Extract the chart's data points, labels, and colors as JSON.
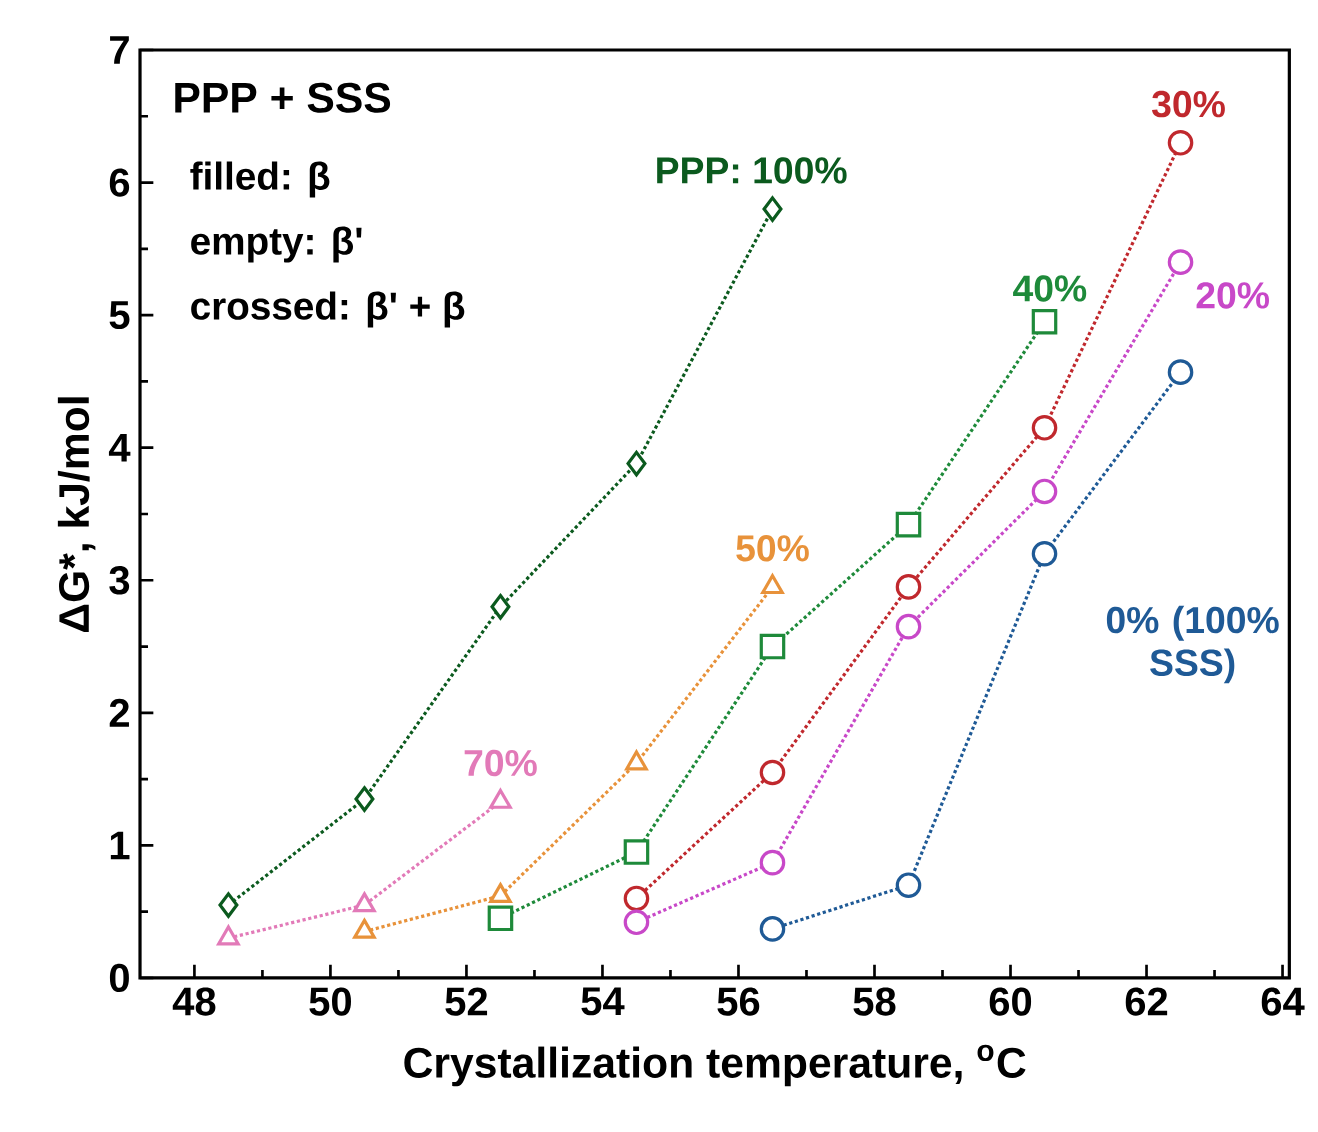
{
  "chart_data": {
    "type": "line",
    "xlabel": "Crystallization temperature, $^{o}$C",
    "ylabel": "ΔG*, kJ/mol",
    "xlim": [
      47.2,
      64.1
    ],
    "xticks": [
      48,
      50,
      52,
      54,
      56,
      58,
      60,
      62,
      64
    ],
    "ylim": [
      0,
      7
    ],
    "yticks": [
      0,
      1,
      2,
      3,
      4,
      5,
      6,
      7
    ],
    "grid": false,
    "line_style": "dotted",
    "annotations": [
      "PPP + SSS",
      "filled: β",
      "empty: β'",
      "crossed: β' + β"
    ],
    "series": [
      {
        "name": "PPP: 100%",
        "color": "#0b5a1e",
        "marker": "diamond",
        "x": [
          48.5,
          50.5,
          52.5,
          54.5,
          56.5
        ],
        "values": [
          0.55,
          1.35,
          2.8,
          3.88,
          5.8
        ]
      },
      {
        "name": "70%",
        "color": "#e27ab8",
        "marker": "triangle",
        "x": [
          48.5,
          50.5,
          52.5
        ],
        "values": [
          0.3,
          0.55,
          1.33
        ]
      },
      {
        "name": "50%",
        "color": "#e8923a",
        "marker": "triangle",
        "x": [
          50.5,
          52.5,
          54.5,
          56.5
        ],
        "values": [
          0.35,
          0.62,
          1.62,
          2.95
        ]
      },
      {
        "name": "40%",
        "color": "#1e8a3a",
        "marker": "square",
        "x": [
          52.5,
          54.5,
          56.5,
          58.5,
          60.5
        ],
        "values": [
          0.45,
          0.95,
          2.5,
          3.42,
          4.95
        ]
      },
      {
        "name": "30%",
        "color": "#c0282d",
        "marker": "circle",
        "x": [
          54.5,
          56.5,
          58.5,
          60.5,
          62.5
        ],
        "values": [
          0.6,
          1.55,
          2.95,
          4.15,
          6.3
        ]
      },
      {
        "name": "20%",
        "color": "#c848c8",
        "marker": "circle",
        "x": [
          54.5,
          56.5,
          58.5,
          60.5,
          62.5
        ],
        "values": [
          0.42,
          0.87,
          2.65,
          3.67,
          5.4
        ]
      },
      {
        "name": "0% (100% SSS)",
        "color": "#1f5a96",
        "marker": "circle",
        "x": [
          56.5,
          58.5,
          60.5,
          62.5
        ],
        "values": [
          0.37,
          0.7,
          3.2,
          4.57
        ]
      }
    ]
  }
}
